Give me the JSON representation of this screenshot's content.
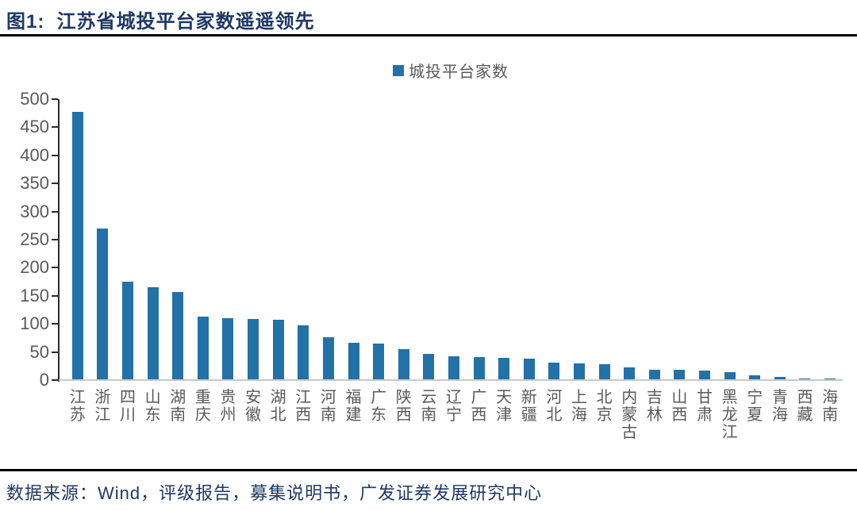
{
  "header": {
    "title": "图1:  江苏省城投平台家数遥遥领先"
  },
  "footer": {
    "source": "数据来源：Wind，评级报告，募集说明书，广发证券发展研究中心"
  },
  "chart_data": {
    "type": "bar",
    "title": "",
    "xlabel": "",
    "ylabel": "",
    "legend": [
      "城投平台家数"
    ],
    "legend_position": "top-center",
    "grid": false,
    "ylim": [
      0,
      500
    ],
    "ytick_interval": 50,
    "bar_color": "#2272A8",
    "categories": [
      "江苏",
      "浙江",
      "四川",
      "山东",
      "湖南",
      "重庆",
      "贵州",
      "安徽",
      "湖北",
      "江西",
      "河南",
      "福建",
      "广东",
      "陕西",
      "云南",
      "辽宁",
      "广西",
      "天津",
      "新疆",
      "河北",
      "上海",
      "北京",
      "内蒙古",
      "吉林",
      "山西",
      "甘肃",
      "黑龙江",
      "宁夏",
      "青海",
      "西藏",
      "海南"
    ],
    "values": [
      477,
      270,
      175,
      165,
      157,
      113,
      110,
      109,
      107,
      98,
      76,
      67,
      65,
      55,
      46,
      43,
      41,
      40,
      38,
      31,
      30,
      28,
      22,
      19,
      18,
      17,
      14,
      8,
      6,
      3,
      2
    ]
  },
  "colors": {
    "title_text": "#1F3864",
    "bar": "#2272A8",
    "axis_text": "#595959",
    "axis_line": "#2B2B2B",
    "baseline": "#C9C9C9",
    "rule": "#000000",
    "source_text": "#1F3864"
  }
}
